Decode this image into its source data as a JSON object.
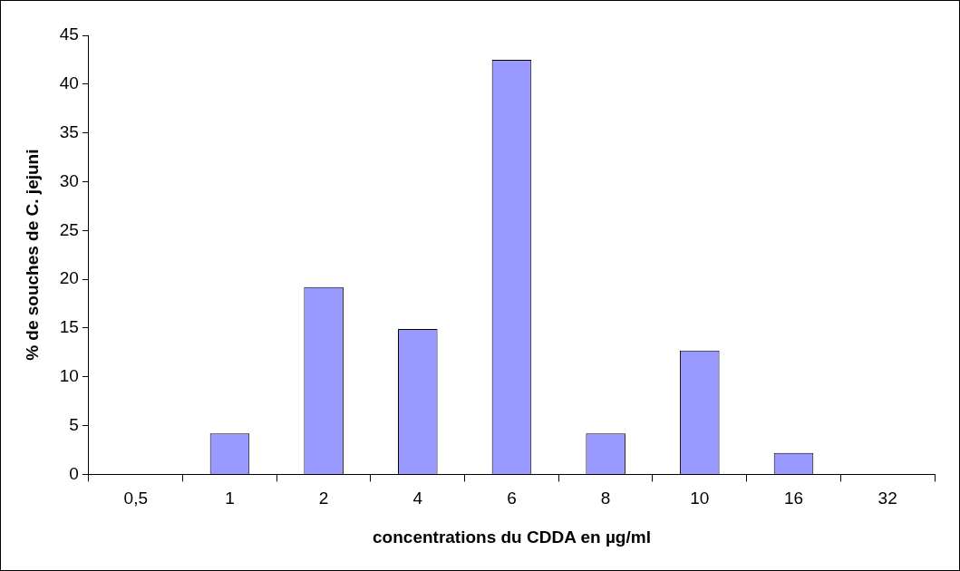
{
  "chart_data": {
    "type": "bar",
    "xlabel": "concentrations du CDDA en µg/ml",
    "ylabel": "% de souches de C. jejuni",
    "categories": [
      "0,5",
      "1",
      "2",
      "4",
      "6",
      "8",
      "10",
      "16",
      "32"
    ],
    "values": [
      0,
      4.2,
      19.2,
      14.9,
      42.5,
      4.2,
      12.7,
      2.2,
      0
    ],
    "color": "#9999ff",
    "ylim": [
      0,
      45
    ],
    "yticks": [
      0,
      5,
      10,
      15,
      20,
      25,
      30,
      35,
      40,
      45
    ],
    "grid": false,
    "legend": false
  }
}
